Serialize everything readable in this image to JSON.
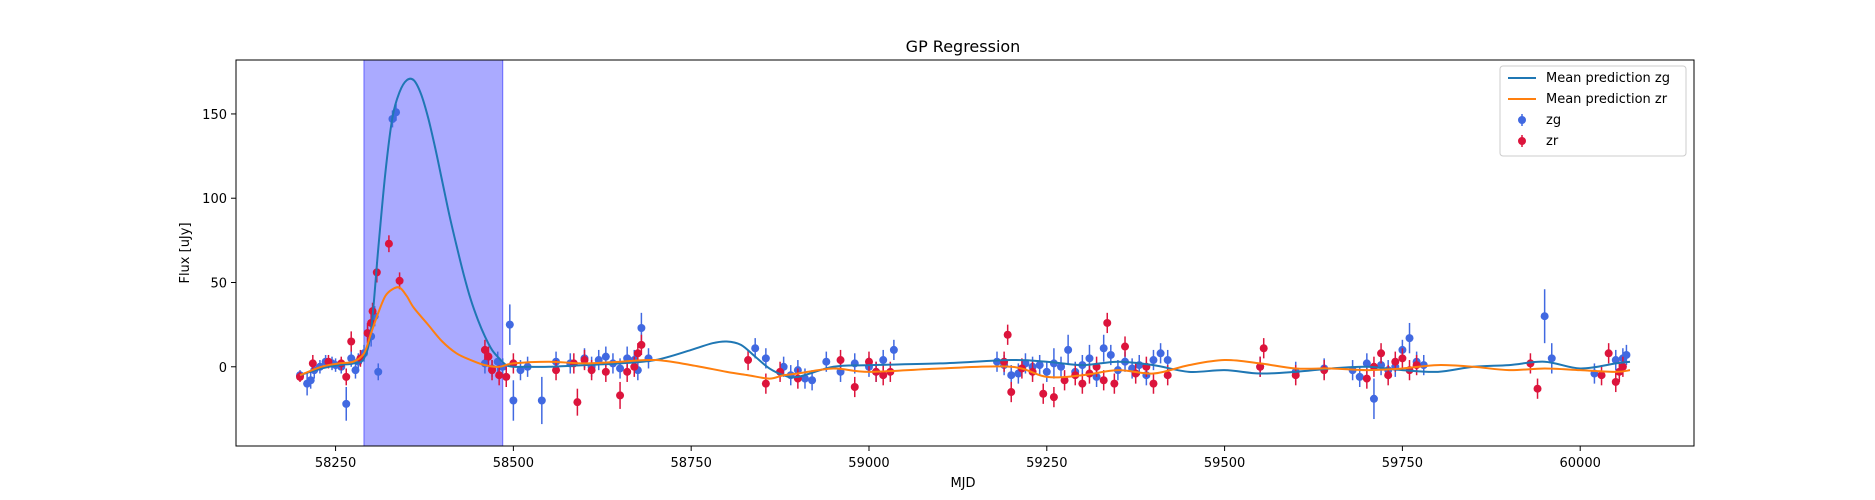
{
  "chart_data": {
    "type": "scatter",
    "title": "GP Regression",
    "xlabel": "MJD",
    "ylabel": "Flux [uJy]",
    "xlim": [
      58110,
      60160
    ],
    "ylim": [
      -47,
      182
    ],
    "xticks": [
      58250,
      58500,
      58750,
      59000,
      59250,
      59500,
      59750,
      60000
    ],
    "yticks": [
      0,
      50,
      100,
      150
    ],
    "grid": false,
    "legend_position": "top-right",
    "highlight_band": {
      "x_start": 58290,
      "x_end": 58485,
      "color": "#aaaaff"
    },
    "series": [
      {
        "name": "Mean prediction zg",
        "kind": "line",
        "color": "#1f77b4",
        "x": [
          58200,
          58230,
          58255,
          58275,
          58290,
          58300,
          58310,
          58320,
          58330,
          58340,
          58350,
          58360,
          58370,
          58380,
          58390,
          58400,
          58410,
          58420,
          58430,
          58440,
          58450,
          58460,
          58470,
          58480,
          58490,
          58500,
          58520,
          58550,
          58600,
          58650,
          58700,
          58750,
          58780,
          58800,
          58820,
          58840,
          58860,
          58880,
          58900,
          58950,
          59000,
          59100,
          59200,
          59250,
          59300,
          59350,
          59400,
          59450,
          59500,
          59550,
          59600,
          59650,
          59700,
          59750,
          59800,
          59850,
          59900,
          59950,
          60000,
          60050,
          60070
        ],
        "y": [
          -5,
          -1,
          1,
          2,
          5,
          22,
          70,
          115,
          148,
          163,
          170,
          170,
          162,
          148,
          130,
          110,
          90,
          72,
          55,
          40,
          28,
          18,
          10,
          5,
          1,
          0,
          0,
          0,
          1,
          2,
          4,
          10,
          14,
          15,
          13,
          6,
          -1,
          -5,
          -6,
          0,
          1,
          2,
          4,
          3,
          1,
          3,
          1,
          -3,
          -2,
          -4,
          -3,
          -1,
          0,
          -2,
          -3,
          0,
          1,
          3,
          -1,
          2,
          3
        ]
      },
      {
        "name": "Mean prediction zr",
        "kind": "line",
        "color": "#ff7f0e",
        "x": [
          58200,
          58230,
          58255,
          58275,
          58290,
          58300,
          58310,
          58320,
          58330,
          58340,
          58350,
          58360,
          58380,
          58400,
          58420,
          58440,
          58460,
          58480,
          58500,
          58550,
          58600,
          58650,
          58700,
          58750,
          58800,
          58830,
          58860,
          58880,
          58900,
          58950,
          59000,
          59100,
          59200,
          59250,
          59300,
          59350,
          59400,
          59450,
          59500,
          59550,
          59600,
          59650,
          59700,
          59750,
          59800,
          59850,
          59900,
          59950,
          60000,
          60050,
          60070
        ],
        "y": [
          -5,
          0,
          2,
          3,
          8,
          20,
          32,
          42,
          46,
          47,
          42,
          35,
          25,
          15,
          8,
          4,
          1,
          0,
          2,
          3,
          2,
          3,
          4,
          1,
          -3,
          -5,
          -7,
          -5,
          -4,
          -1,
          -3,
          -1,
          0,
          -6,
          -5,
          -2,
          -4,
          1,
          4,
          2,
          -1,
          -1,
          -2,
          -1,
          1,
          0,
          -2,
          -1,
          -2,
          -3,
          -2
        ]
      },
      {
        "name": "zg",
        "kind": "errorbar",
        "color": "#4169e1",
        "x": [
          58200,
          58210,
          58215,
          58220,
          58228,
          58236,
          58245,
          58250,
          58258,
          58265,
          58272,
          58278,
          58282,
          58290,
          58295,
          58300,
          58305,
          58310,
          58330,
          58335,
          58460,
          58470,
          58478,
          58485,
          58495,
          58500,
          58510,
          58520,
          58540,
          58560,
          58580,
          58600,
          58610,
          58620,
          58630,
          58640,
          58650,
          58660,
          58670,
          58675,
          58680,
          58690,
          58840,
          58855,
          58880,
          58890,
          58900,
          58910,
          58920,
          58940,
          58960,
          58980,
          59000,
          59010,
          59020,
          59035,
          59180,
          59190,
          59200,
          59210,
          59220,
          59230,
          59240,
          59250,
          59260,
          59270,
          59280,
          59290,
          59300,
          59310,
          59320,
          59330,
          59340,
          59350,
          59360,
          59370,
          59380,
          59390,
          59400,
          59410,
          59420,
          59550,
          59600,
          59640,
          59680,
          59690,
          59700,
          59710,
          59720,
          59730,
          59740,
          59750,
          59760,
          59770,
          59780,
          59950,
          59960,
          60020,
          60050,
          60060,
          60065
        ],
        "y": [
          -5,
          -10,
          -8,
          -2,
          0,
          3,
          2,
          1,
          0,
          -22,
          5,
          -2,
          3,
          8,
          20,
          18,
          30,
          -3,
          147,
          151,
          2,
          -1,
          3,
          0,
          25,
          -20,
          -2,
          0,
          -20,
          3,
          2,
          5,
          0,
          4,
          6,
          2,
          -1,
          5,
          4,
          -2,
          23,
          5,
          11,
          5,
          0,
          -5,
          -2,
          -7,
          -8,
          3,
          -3,
          2,
          0,
          -3,
          4,
          10,
          3,
          1,
          -5,
          -4,
          2,
          0,
          1,
          -3,
          2,
          0,
          10,
          -3,
          1,
          5,
          -6,
          11,
          7,
          -2,
          3,
          -1,
          1,
          -5,
          4,
          8,
          4,
          0,
          -3,
          -1,
          -2,
          -6,
          2,
          -19,
          1,
          -2,
          0,
          10,
          17,
          3,
          1,
          30,
          5,
          -4,
          4,
          5,
          7
        ],
        "yerr": [
          3,
          7,
          5,
          5,
          4,
          4,
          4,
          4,
          4,
          10,
          5,
          5,
          5,
          5,
          6,
          6,
          6,
          5,
          5,
          5,
          6,
          5,
          6,
          5,
          12,
          12,
          6,
          6,
          14,
          6,
          6,
          6,
          6,
          6,
          6,
          6,
          6,
          7,
          6,
          6,
          9,
          6,
          6,
          6,
          6,
          6,
          6,
          6,
          6,
          6,
          6,
          6,
          6,
          6,
          6,
          6,
          6,
          6,
          6,
          6,
          6,
          6,
          6,
          6,
          9,
          6,
          9,
          6,
          6,
          8,
          6,
          8,
          6,
          6,
          6,
          6,
          6,
          6,
          6,
          6,
          6,
          6,
          6,
          6,
          6,
          6,
          6,
          12,
          6,
          6,
          6,
          6,
          9,
          6,
          6,
          16,
          9,
          6,
          6,
          6,
          6
        ]
      },
      {
        "name": "zr",
        "kind": "errorbar",
        "color": "#dc143c",
        "x": [
          58200,
          58218,
          58240,
          58258,
          58265,
          58272,
          58285,
          58295,
          58300,
          58302,
          58308,
          58325,
          58340,
          58460,
          58465,
          58470,
          58480,
          58490,
          58500,
          58560,
          58585,
          58590,
          58600,
          58610,
          58630,
          58650,
          58660,
          58670,
          58675,
          58680,
          58830,
          58855,
          58875,
          58900,
          58960,
          58980,
          59000,
          59010,
          59020,
          59030,
          59190,
          59195,
          59200,
          59215,
          59230,
          59245,
          59260,
          59275,
          59290,
          59300,
          59310,
          59320,
          59330,
          59335,
          59345,
          59360,
          59375,
          59390,
          59400,
          59420,
          59550,
          59555,
          59600,
          59640,
          59700,
          59710,
          59720,
          59730,
          59740,
          59750,
          59760,
          59770,
          59930,
          59940,
          60030,
          60040,
          60050,
          60055,
          60060
        ],
        "y": [
          -6,
          2,
          3,
          2,
          -6,
          15,
          5,
          20,
          26,
          33,
          56,
          73,
          51,
          10,
          6,
          -2,
          -5,
          -6,
          2,
          -2,
          2,
          -21,
          4,
          -2,
          -3,
          -17,
          -3,
          0,
          8,
          13,
          4,
          -10,
          -3,
          -7,
          4,
          -12,
          3,
          -3,
          -5,
          -3,
          3,
          19,
          -15,
          -1,
          -3,
          -16,
          -18,
          -8,
          -5,
          -10,
          -4,
          0,
          -8,
          26,
          -10,
          12,
          -4,
          0,
          -10,
          -5,
          0,
          11,
          -5,
          -2,
          -7,
          0,
          8,
          -5,
          3,
          5,
          -2,
          1,
          2,
          -13,
          -5,
          8,
          -9,
          -3,
          0
        ],
        "yerr": [
          3,
          5,
          4,
          4,
          5,
          6,
          5,
          6,
          5,
          5,
          6,
          5,
          5,
          6,
          6,
          6,
          6,
          6,
          6,
          6,
          6,
          8,
          6,
          6,
          6,
          8,
          6,
          6,
          6,
          6,
          6,
          6,
          6,
          6,
          6,
          6,
          6,
          6,
          6,
          6,
          6,
          6,
          6,
          6,
          6,
          6,
          6,
          6,
          6,
          6,
          6,
          6,
          6,
          6,
          6,
          6,
          6,
          6,
          6,
          6,
          6,
          6,
          6,
          6,
          6,
          6,
          6,
          6,
          6,
          6,
          6,
          6,
          6,
          6,
          6,
          6,
          6,
          6,
          6
        ]
      }
    ]
  }
}
